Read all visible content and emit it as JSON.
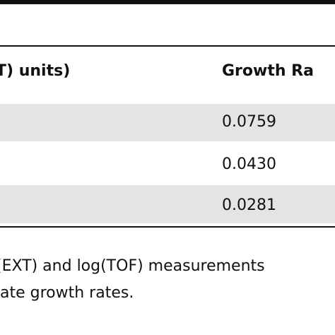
{
  "table": {
    "headers": [
      "T) units)",
      "Growth Ra"
    ],
    "rows": [
      {
        "growth_rate": "0.0759"
      },
      {
        "growth_rate": "0.0430"
      },
      {
        "growth_rate": "0.0281"
      }
    ]
  },
  "footnote": {
    "line1": "(EXT) and log(TOF) measurements",
    "line2": "ate growth rates."
  }
}
